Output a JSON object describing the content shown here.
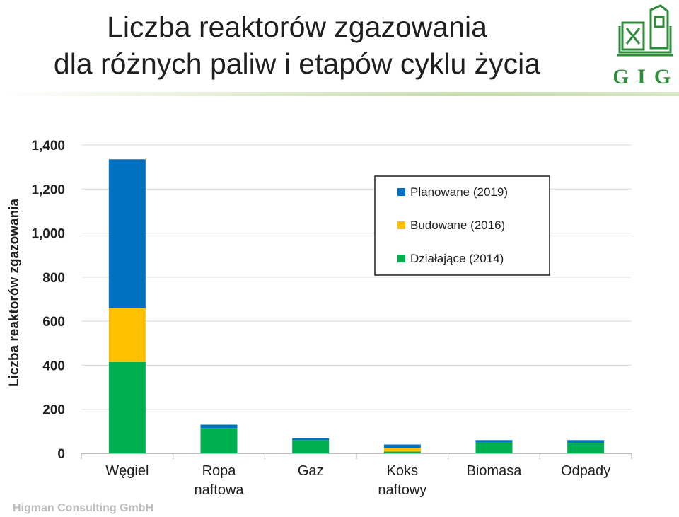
{
  "header": {
    "title_line1": "Liczba reaktorów zgazowania",
    "title_line2": "dla różnych paliw i etapów cyklu życia",
    "logo_text": "GIG"
  },
  "footer": {
    "text": "Higman Consulting GmbH"
  },
  "chart_data": {
    "type": "bar",
    "stacked": true,
    "title": "",
    "ylabel": "Liczba reaktorów zgazowania",
    "xlabel": "",
    "ylim": [
      0,
      1400
    ],
    "yticks": [
      0,
      200,
      400,
      600,
      800,
      1000,
      1200,
      1400
    ],
    "ytick_labels": [
      "0",
      "200",
      "400",
      "600",
      "800",
      "1,000",
      "1,200",
      "1,400"
    ],
    "grid": true,
    "legend_position": "top-right",
    "categories": [
      [
        "Węgiel"
      ],
      [
        "Ropa",
        "naftowa"
      ],
      [
        "Gaz"
      ],
      [
        "Koks",
        "naftowy"
      ],
      [
        "Biomasa"
      ],
      [
        "Odpady"
      ]
    ],
    "series": [
      {
        "name": "Działające (2014)",
        "color": "#00b050",
        "values": [
          415,
          115,
          60,
          8,
          50,
          48
        ]
      },
      {
        "name": "Budowane (2016)",
        "color": "#ffc000",
        "values": [
          245,
          0,
          0,
          17,
          0,
          0
        ]
      },
      {
        "name": "Planowane (2019)",
        "color": "#0070c0",
        "values": [
          675,
          15,
          8,
          15,
          10,
          12
        ]
      }
    ],
    "legend_order": [
      2,
      1,
      0
    ]
  }
}
